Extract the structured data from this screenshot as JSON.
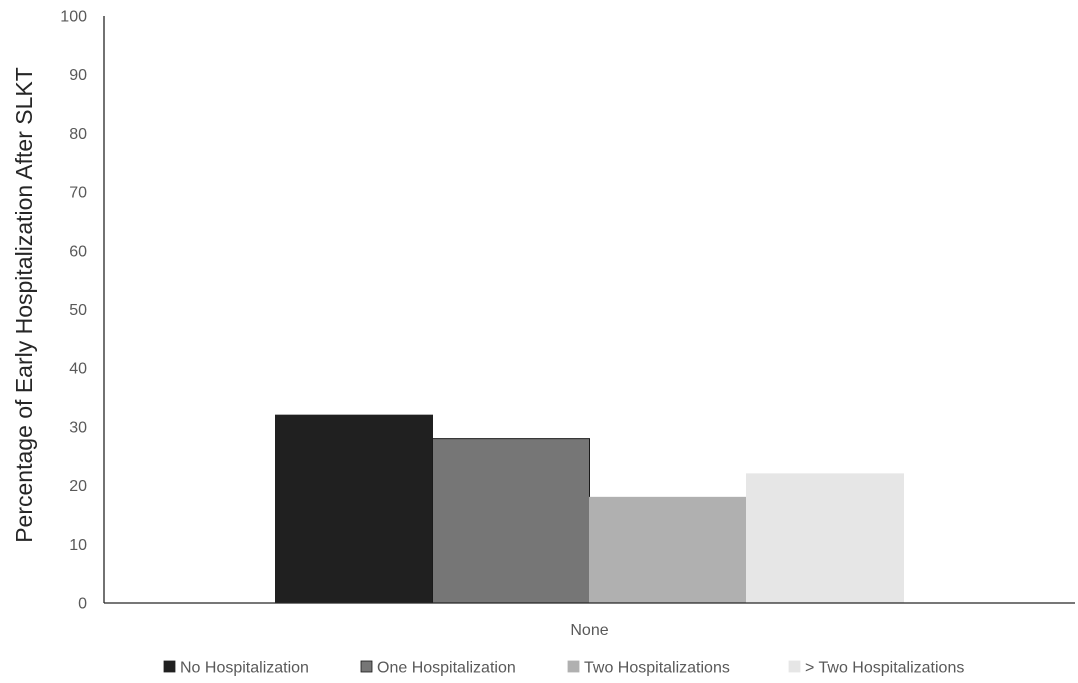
{
  "chart_data": {
    "type": "bar",
    "title": "",
    "xlabel": "",
    "ylabel": "Percentage of Early Hospitalization After SLKT",
    "categories": [
      "None"
    ],
    "ylim": [
      0,
      100
    ],
    "yticks": [
      0,
      10,
      20,
      30,
      40,
      50,
      60,
      70,
      80,
      90,
      100
    ],
    "grid": false,
    "legend_position": "bottom",
    "series": [
      {
        "name": "No Hospitalization",
        "values": [
          32
        ],
        "color": "#202020",
        "stroke": "#202020"
      },
      {
        "name": "One Hospitalization",
        "values": [
          28
        ],
        "color": "#767676",
        "stroke": "#1a1a1a"
      },
      {
        "name": "Two Hospitalizations",
        "values": [
          18
        ],
        "color": "#b0b0b0",
        "stroke": "#b0b0b0"
      },
      {
        "name": "> Two Hospitalizations",
        "values": [
          22
        ],
        "color": "#e6e6e6",
        "stroke": "#e6e6e6"
      }
    ],
    "colors": {
      "axis": "#262626",
      "tick_text": "#595959",
      "title_text": "#262626"
    }
  }
}
